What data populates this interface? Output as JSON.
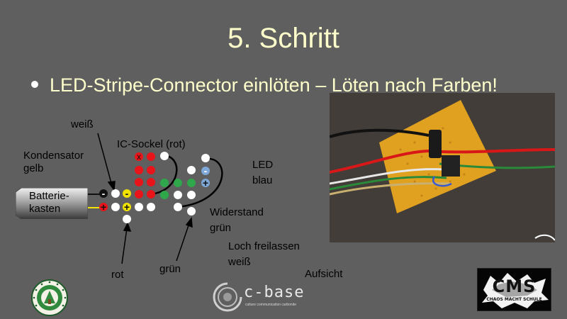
{
  "slide": {
    "title": "5. Schritt",
    "bullet": "LED-Stripe-Connector einlöten – Löten nach Farben!"
  },
  "labels": {
    "weiss_top": "weiß",
    "kondensator_1": "Kondensator",
    "kondensator_2": "gelb",
    "ic_sockel": "IC-Sockel (rot)",
    "led_1": "LED",
    "led_2": "blau",
    "batterie_1": "Batterie-",
    "batterie_2": "kasten",
    "widerstand_1": "Widerstand",
    "widerstand_2": "grün",
    "loch_1": "Loch freilassen",
    "loch_2": "weiß",
    "rot": "rot",
    "gruen": "grün",
    "aufsicht": "Aufsicht"
  },
  "diagram_marks": {
    "minus": "-",
    "plus": "+",
    "x": "x"
  },
  "logos": {
    "cbase_text": "c-base",
    "cbase_sub": "culture communication carbonite",
    "cms_text": "CMS",
    "cms_sub": "CHAOS MACHT SCHULE"
  },
  "colors": {
    "title": "#ffffcc",
    "background": "#5f5f5f",
    "hole_white": "#ffffff",
    "hole_red": "#e8141a",
    "hole_green": "#2ea84a",
    "hole_blue": "#7ea8d8",
    "hole_yellow": "#f2e400",
    "hole_black": "#111111"
  }
}
